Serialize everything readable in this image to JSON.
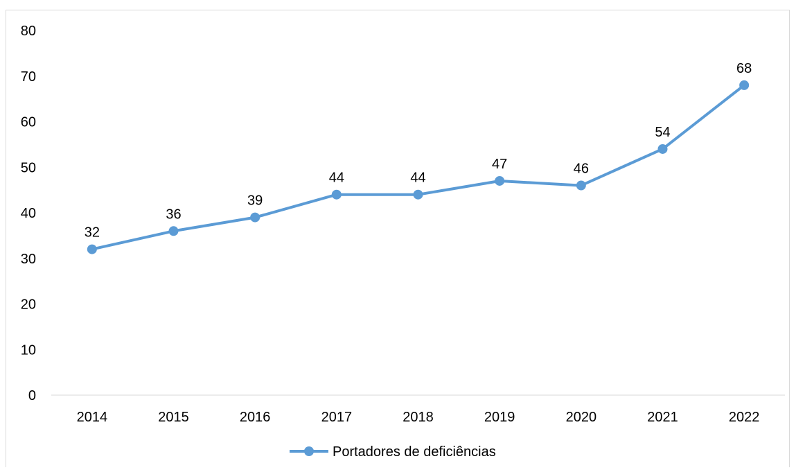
{
  "chart_data": {
    "type": "line",
    "categories": [
      "2014",
      "2015",
      "2016",
      "2017",
      "2018",
      "2019",
      "2020",
      "2021",
      "2022"
    ],
    "series": [
      {
        "name": "Portadores de deficiências",
        "values": [
          32,
          36,
          39,
          44,
          44,
          47,
          46,
          54,
          68
        ],
        "color": "#5b9bd5"
      }
    ],
    "ylim": [
      0,
      80
    ],
    "yticks": [
      0,
      10,
      20,
      30,
      40,
      50,
      60,
      70,
      80
    ],
    "grid": false,
    "data_labels": true,
    "legend_position": "bottom"
  }
}
